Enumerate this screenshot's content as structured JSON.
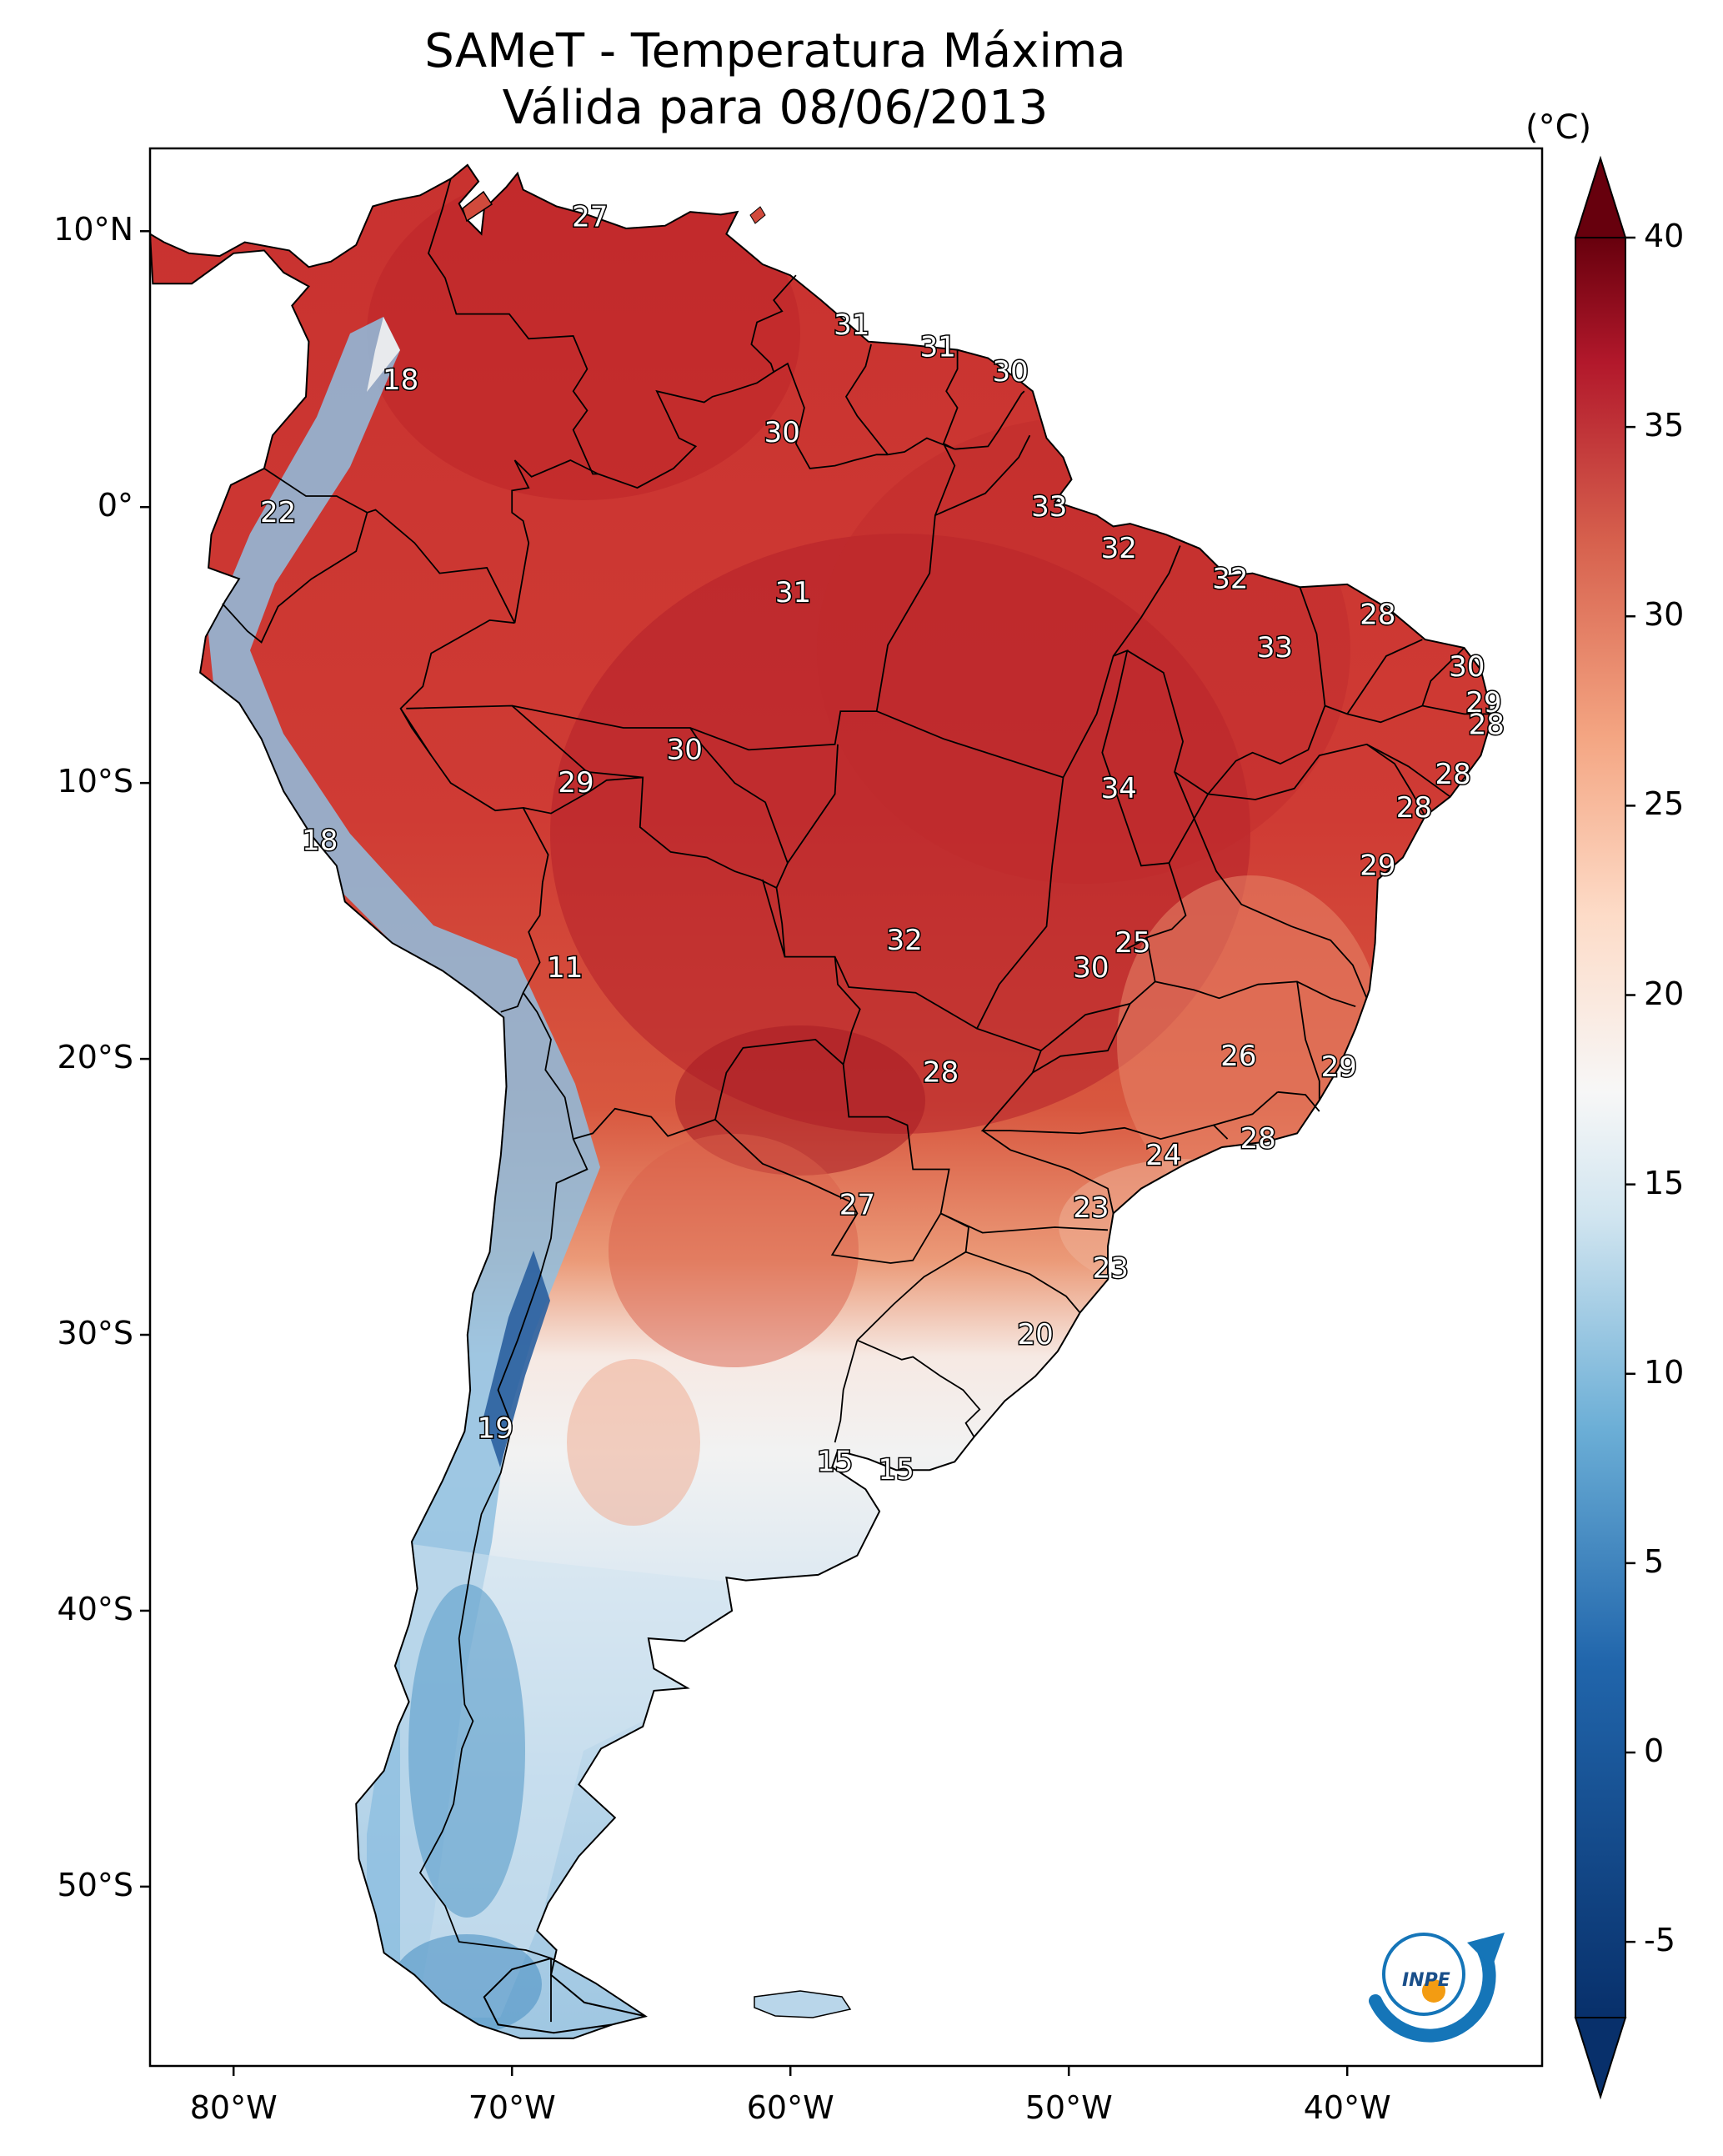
{
  "title": {
    "line1": "SAMeT - Temperatura Máxima",
    "line2": "Válida para 08/06/2013"
  },
  "axes": {
    "lat_labels": [
      "10°N",
      "0°",
      "10°S",
      "20°S",
      "30°S",
      "40°S",
      "50°S"
    ],
    "lon_labels": [
      "80°W",
      "70°W",
      "60°W",
      "50°W",
      "40°W"
    ]
  },
  "colorbar": {
    "unit": "(°C)",
    "ticks": [
      "40",
      "35",
      "30",
      "25",
      "20",
      "15",
      "10",
      "5",
      "0",
      "-5"
    ],
    "min": -7,
    "max": 40,
    "colors": {
      "low": "#08306b",
      "mid_low": "#4a98c9",
      "neutral": "#f7f7f7",
      "mid_high": "#ef8a62",
      "high": "#67000d"
    }
  },
  "map": {
    "ocean_color": "#ffffff",
    "border_color": "#000000",
    "labels": [
      {
        "text": "27",
        "lat": 10.5,
        "lon": -67.2
      },
      {
        "text": "31",
        "lat": 6.6,
        "lon": -57.8
      },
      {
        "text": "31",
        "lat": 5.8,
        "lon": -54.7
      },
      {
        "text": "30",
        "lat": 4.9,
        "lon": -52.1
      },
      {
        "text": "18",
        "lat": 4.6,
        "lon": -74.0
      },
      {
        "text": "30",
        "lat": 2.7,
        "lon": -60.3
      },
      {
        "text": "33",
        "lat": 0.0,
        "lon": -50.7
      },
      {
        "text": "22",
        "lat": -0.2,
        "lon": -78.4
      },
      {
        "text": "32",
        "lat": -1.5,
        "lon": -48.2
      },
      {
        "text": "32",
        "lat": -2.6,
        "lon": -44.2
      },
      {
        "text": "31",
        "lat": -3.1,
        "lon": -59.9
      },
      {
        "text": "28",
        "lat": -3.9,
        "lon": -38.9
      },
      {
        "text": "33",
        "lat": -5.1,
        "lon": -42.6
      },
      {
        "text": "30",
        "lat": -5.8,
        "lon": -35.7
      },
      {
        "text": "29",
        "lat": -7.1,
        "lon": -35.1
      },
      {
        "text": "28",
        "lat": -7.9,
        "lon": -35.0
      },
      {
        "text": "30",
        "lat": -8.8,
        "lon": -63.8
      },
      {
        "text": "28",
        "lat": -9.7,
        "lon": -36.2
      },
      {
        "text": "29",
        "lat": -10.0,
        "lon": -67.7
      },
      {
        "text": "34",
        "lat": -10.2,
        "lon": -48.2
      },
      {
        "text": "28",
        "lat": -10.9,
        "lon": -37.6
      },
      {
        "text": "18",
        "lat": -12.1,
        "lon": -76.9
      },
      {
        "text": "29",
        "lat": -13.0,
        "lon": -38.9
      },
      {
        "text": "32",
        "lat": -15.7,
        "lon": -55.9
      },
      {
        "text": "25",
        "lat": -15.8,
        "lon": -47.7
      },
      {
        "text": "11",
        "lat": -16.7,
        "lon": -68.1
      },
      {
        "text": "30",
        "lat": -16.7,
        "lon": -49.2
      },
      {
        "text": "26",
        "lat": -19.9,
        "lon": -43.9
      },
      {
        "text": "29",
        "lat": -20.3,
        "lon": -40.3
      },
      {
        "text": "28",
        "lat": -20.5,
        "lon": -54.6
      },
      {
        "text": "28",
        "lat": -22.9,
        "lon": -43.2
      },
      {
        "text": "24",
        "lat": -23.5,
        "lon": -46.6
      },
      {
        "text": "27",
        "lat": -25.3,
        "lon": -57.6
      },
      {
        "text": "23",
        "lat": -25.4,
        "lon": -49.2
      },
      {
        "text": "23",
        "lat": -27.6,
        "lon": -48.5
      },
      {
        "text": "20",
        "lat": -30.0,
        "lon": -51.2
      },
      {
        "text": "19",
        "lat": -33.4,
        "lon": -70.6
      },
      {
        "text": "15",
        "lat": -34.6,
        "lon": -58.4
      },
      {
        "text": "15",
        "lat": -34.9,
        "lon": -56.2
      }
    ]
  }
}
